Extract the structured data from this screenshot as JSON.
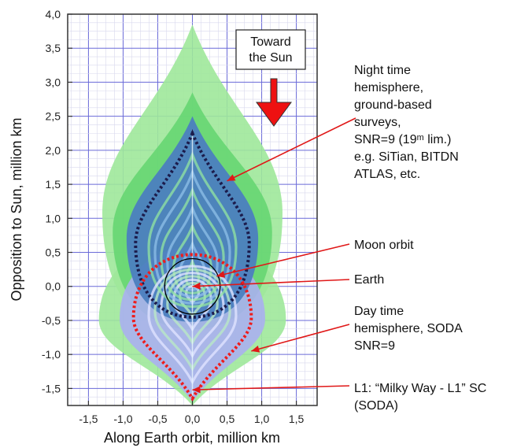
{
  "chart_data": {
    "type": "area",
    "xlabel": "Along Earth orbit, million km",
    "ylabel": "Opposition to Sun, million km",
    "xlim": [
      -1.8,
      1.8
    ],
    "ylim": [
      -1.75,
      4.0
    ],
    "x_ticks": [
      "-1,5",
      "-1,0",
      "-0,5",
      "0,0",
      "0,5",
      "1,0",
      "1,5"
    ],
    "x_tick_values": [
      -1.5,
      -1.0,
      -0.5,
      0.0,
      0.5,
      1.0,
      1.5
    ],
    "y_ticks": [
      "4,0",
      "3,5",
      "3,0",
      "2,5",
      "2,0",
      "1,5",
      "1,0",
      "0,5",
      "0,0",
      "-0,5",
      "-1,0",
      "-1,5"
    ],
    "y_tick_values": [
      4.0,
      3.5,
      3.0,
      2.5,
      2.0,
      1.5,
      1.0,
      0.5,
      0.0,
      -0.5,
      -1.0,
      -1.5
    ],
    "grid": true,
    "regions": [
      {
        "id": "outer-green",
        "color": "#9ee89a",
        "apex_y": 3.85,
        "base_y": 0.0,
        "half_width": 1.3
      },
      {
        "id": "mid-green",
        "color": "#66d672",
        "apex_y": 2.85,
        "base_y": 0.0,
        "half_width": 1.15
      },
      {
        "id": "blue-night",
        "color": "#4c7fbf",
        "apex_y": 2.5,
        "base_y": 0.0,
        "half_width": 0.95
      },
      {
        "id": "lower-green",
        "color": "#9ee89a",
        "apex_y": -1.75,
        "base_y": 0.0,
        "half_width": 1.35
      },
      {
        "id": "lavender-day",
        "color": "#aab0f0",
        "apex_y": -1.7,
        "base_y": 0.0,
        "half_width": 1.05
      }
    ],
    "night_boundary": {
      "color": "#1c1c4c",
      "top_y": 2.25,
      "half_width": 0.82,
      "bottom_y": 0.0
    },
    "day_boundary": {
      "color": "#ee1c1c",
      "top_y": 0.0,
      "half_width": 0.85,
      "bottom_y": -1.65
    },
    "moon_orbit": {
      "center": [
        0.0,
        0.0
      ],
      "radius": 0.4,
      "color": "#000000"
    },
    "sun_box": {
      "text_lines": [
        "Toward",
        "the Sun"
      ]
    },
    "arrow_color": "#ee1111",
    "annotation_color": "#e01818",
    "annotations": [
      {
        "id": "night",
        "lines": [
          "Night time",
          "hemisphere,",
          "ground-based",
          "surveys,",
          "SNR=9 (19ᵐ lim.)",
          "e.g. SiTian, BITDN",
          "ATLAS, etc."
        ],
        "target": [
          0.5,
          1.55
        ]
      },
      {
        "id": "moon",
        "lines": [
          "Moon orbit"
        ],
        "target": [
          0.35,
          0.15
        ]
      },
      {
        "id": "earth",
        "lines": [
          "Earth"
        ],
        "target": [
          0.0,
          0.0
        ]
      },
      {
        "id": "day",
        "lines": [
          "Day time",
          "hemisphere, SODA",
          "SNR=9"
        ],
        "target": [
          0.85,
          -0.95
        ]
      },
      {
        "id": "l1",
        "lines": [
          "L1: “Milky Way - L1” SC",
          "(SODA)"
        ],
        "target": [
          0.0,
          -1.52
        ]
      }
    ]
  }
}
